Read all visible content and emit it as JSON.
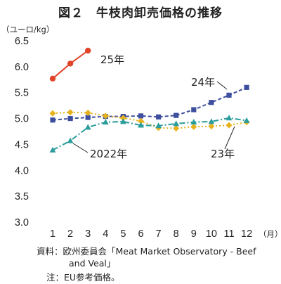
{
  "title": "図２　牛枝肉卸売価格の推移",
  "unit_label": "（ユーロ/kg）",
  "month_unit": "（月）",
  "source_line1": "資料：欧州委員会「Meat Market Observatory - Beef",
  "source_line2": "and Veal」",
  "note": "注：EU参考価格。",
  "chart_data": {
    "type": "line",
    "title": "図２　牛枝肉卸売価格の推移",
    "xlabel": "（月）",
    "ylabel": "（ユーロ/kg）",
    "categories": [
      "1",
      "2",
      "3",
      "4",
      "5",
      "6",
      "7",
      "8",
      "9",
      "10",
      "11",
      "12"
    ],
    "ylim": [
      3.0,
      6.5
    ],
    "yticks": [
      3.0,
      3.5,
      4.0,
      4.5,
      5.0,
      5.5,
      6.0,
      6.5
    ],
    "grid": false,
    "series": [
      {
        "name": "25年",
        "color": "#e0452a",
        "marker": "circle",
        "style": "solid",
        "values": [
          5.77,
          6.06,
          6.31,
          null,
          null,
          null,
          null,
          null,
          null,
          null,
          null,
          null
        ]
      },
      {
        "name": "24年",
        "color": "#3d4f9e",
        "marker": "square",
        "style": "dashed",
        "values": [
          4.97,
          5.0,
          5.02,
          5.04,
          5.04,
          5.05,
          5.03,
          5.06,
          5.17,
          5.31,
          5.45,
          5.6
        ]
      },
      {
        "name": "23年",
        "color": "#e6b21c",
        "marker": "diamond",
        "style": "dotted",
        "values": [
          5.1,
          5.12,
          5.11,
          5.05,
          5.01,
          4.95,
          4.82,
          4.81,
          4.84,
          4.85,
          4.87,
          4.93
        ]
      },
      {
        "name": "2022年",
        "color": "#2a9c9c",
        "marker": "triangle",
        "style": "dashdot",
        "values": [
          4.39,
          4.57,
          4.83,
          4.93,
          4.94,
          4.87,
          4.86,
          4.9,
          4.93,
          4.94,
          5.01,
          4.96
        ]
      }
    ]
  }
}
